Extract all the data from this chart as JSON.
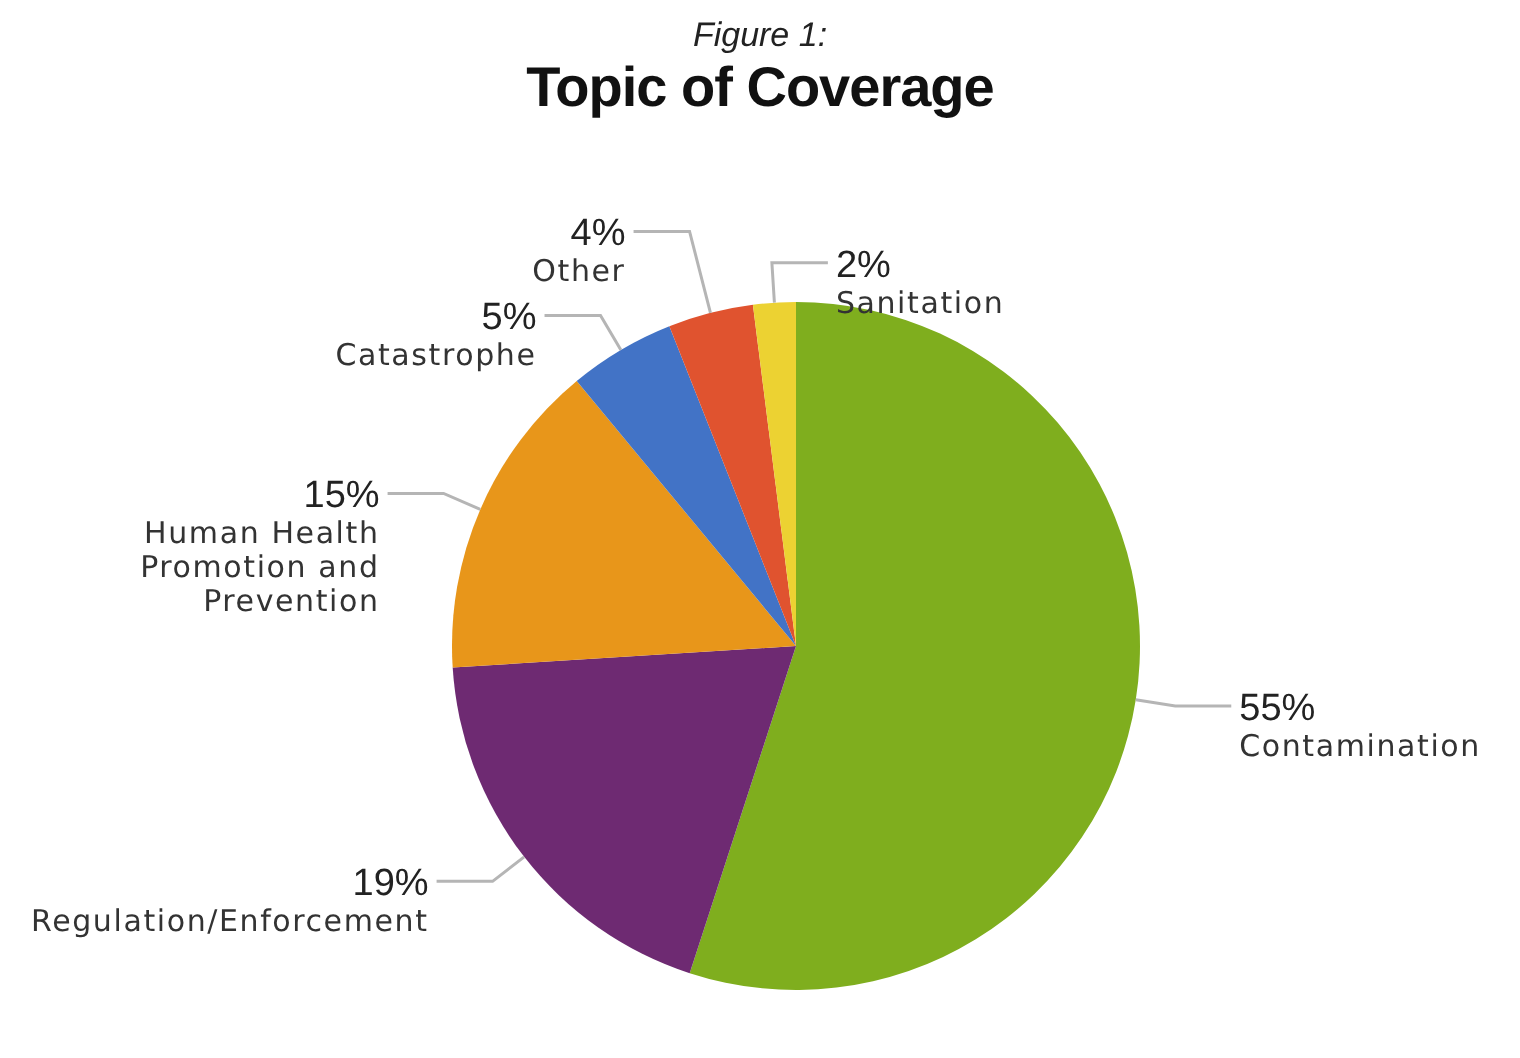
{
  "chart_data": {
    "type": "pie",
    "subtitle": "Figure 1:",
    "title": "Topic of Coverage",
    "categories": [
      "Contamination",
      "Regulation/Enforcement",
      "Human Health Promotion and Prevention",
      "Catastrophe",
      "Other",
      "Sanitation"
    ],
    "values": [
      55,
      19,
      15,
      5,
      4,
      2
    ],
    "value_labels": [
      "55%",
      "19%",
      "15%",
      "5%",
      "4%",
      "2%"
    ],
    "colors": [
      "#7fae1e",
      "#6e2a72",
      "#e8961a",
      "#4273c6",
      "#e0532f",
      "#ecd232"
    ],
    "legend": false
  }
}
